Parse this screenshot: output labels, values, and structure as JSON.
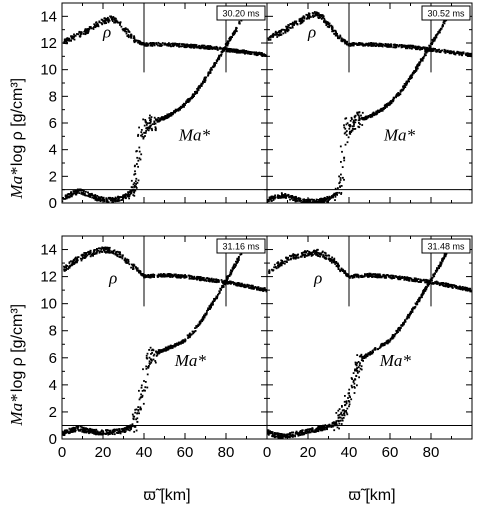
{
  "figure": {
    "ylabel_left": "log ρ [g/cm³]",
    "ylabel_mach": "Ma*",
    "xlabel": "ϖ̃ [km]"
  },
  "chart_data": [
    {
      "type": "scatter",
      "panel": "top-left",
      "time_label": "30.20 ms",
      "xlim": [
        0,
        100
      ],
      "ylim": [
        0,
        15
      ],
      "xticks": [],
      "yticks": [
        0,
        2,
        4,
        6,
        8,
        10,
        12,
        14
      ],
      "annotations": [
        "ρ",
        "Ma*"
      ],
      "reference_lines": {
        "vertical_x": [
          40,
          80
        ],
        "horizontal_y": [
          1
        ]
      },
      "series": [
        {
          "name": "ρ",
          "points": [
            [
              1,
              12.1
            ],
            [
              4,
              12.3
            ],
            [
              8,
              12.6
            ],
            [
              12,
              12.9
            ],
            [
              16,
              13.3
            ],
            [
              20,
              13.6
            ],
            [
              24,
              13.8
            ],
            [
              27,
              13.6
            ],
            [
              30,
              13.1
            ],
            [
              33,
              12.6
            ],
            [
              36,
              12.2
            ],
            [
              40,
              11.9
            ],
            [
              50,
              11.9
            ],
            [
              60,
              11.8
            ],
            [
              70,
              11.7
            ],
            [
              80,
              11.5
            ],
            [
              90,
              11.3
            ],
            [
              100,
              11.1
            ]
          ]
        },
        {
          "name": "Ma*",
          "points": [
            [
              0,
              0.3
            ],
            [
              4,
              0.6
            ],
            [
              8,
              0.9
            ],
            [
              12,
              0.7
            ],
            [
              18,
              0.3
            ],
            [
              24,
              0.2
            ],
            [
              30,
              0.4
            ],
            [
              34,
              0.8
            ],
            [
              36,
              1.5
            ],
            [
              37,
              3
            ],
            [
              38,
              4.5
            ],
            [
              39,
              5.6
            ],
            [
              41,
              5.8
            ],
            [
              45,
              6.1
            ],
            [
              50,
              6.4
            ],
            [
              55,
              6.8
            ],
            [
              60,
              7.4
            ],
            [
              65,
              8.2
            ],
            [
              70,
              9.3
            ],
            [
              75,
              10.5
            ],
            [
              80,
              11.8
            ],
            [
              85,
              13
            ],
            [
              90,
              14.6
            ]
          ]
        }
      ]
    },
    {
      "type": "scatter",
      "panel": "top-right",
      "time_label": "30.52 ms",
      "xlim": [
        0,
        100
      ],
      "ylim": [
        0,
        15
      ],
      "xticks": [],
      "yticks": [],
      "annotations": [
        "ρ",
        "Ma*"
      ],
      "reference_lines": {
        "vertical_x": [
          40,
          80
        ],
        "horizontal_y": [
          1
        ]
      },
      "series": [
        {
          "name": "ρ",
          "points": [
            [
              1,
              12.4
            ],
            [
              4,
              12.6
            ],
            [
              8,
              12.9
            ],
            [
              12,
              13.3
            ],
            [
              16,
              13.6
            ],
            [
              20,
              14
            ],
            [
              24,
              14.2
            ],
            [
              27,
              13.9
            ],
            [
              30,
              13.4
            ],
            [
              33,
              12.8
            ],
            [
              36,
              12.3
            ],
            [
              40,
              11.9
            ],
            [
              50,
              11.9
            ],
            [
              60,
              11.8
            ],
            [
              70,
              11.7
            ],
            [
              80,
              11.5
            ],
            [
              90,
              11.3
            ],
            [
              100,
              11.1
            ]
          ]
        },
        {
          "name": "Ma*",
          "points": [
            [
              0,
              0.2
            ],
            [
              4,
              0.4
            ],
            [
              8,
              0.6
            ],
            [
              12,
              0.4
            ],
            [
              18,
              0.1
            ],
            [
              24,
              0.1
            ],
            [
              30,
              0.3
            ],
            [
              34,
              0.7
            ],
            [
              36,
              1.4
            ],
            [
              37,
              3
            ],
            [
              38,
              4.6
            ],
            [
              39,
              5.7
            ],
            [
              41,
              5.9
            ],
            [
              45,
              6.2
            ],
            [
              50,
              6.5
            ],
            [
              55,
              6.9
            ],
            [
              60,
              7.5
            ],
            [
              65,
              8.3
            ],
            [
              70,
              9.4
            ],
            [
              75,
              10.6
            ],
            [
              80,
              11.9
            ],
            [
              85,
              13.1
            ],
            [
              90,
              14.6
            ]
          ]
        }
      ]
    },
    {
      "type": "scatter",
      "panel": "bottom-left",
      "time_label": "31.16 ms",
      "xlim": [
        0,
        100
      ],
      "ylim": [
        0,
        15
      ],
      "xticks": [
        0,
        20,
        40,
        60,
        80
      ],
      "yticks": [
        0,
        2,
        4,
        6,
        8,
        10,
        12,
        14
      ],
      "annotations": [
        "ρ",
        "Ma*"
      ],
      "reference_lines": {
        "vertical_x": [
          40,
          80
        ],
        "horizontal_y": [
          1
        ]
      },
      "series": [
        {
          "name": "ρ",
          "points": [
            [
              1,
              12.5
            ],
            [
              4,
              12.9
            ],
            [
              8,
              13.3
            ],
            [
              12,
              13.6
            ],
            [
              16,
              13.8
            ],
            [
              20,
              14
            ],
            [
              24,
              13.9
            ],
            [
              28,
              13.6
            ],
            [
              32,
              13.1
            ],
            [
              36,
              12.6
            ],
            [
              40,
              12
            ],
            [
              50,
              12.1
            ],
            [
              60,
              12
            ],
            [
              70,
              11.8
            ],
            [
              80,
              11.6
            ],
            [
              90,
              11.3
            ],
            [
              100,
              11
            ]
          ]
        },
        {
          "name": "Ma*",
          "points": [
            [
              0,
              0.4
            ],
            [
              4,
              0.6
            ],
            [
              8,
              0.8
            ],
            [
              12,
              0.6
            ],
            [
              18,
              0.5
            ],
            [
              24,
              0.5
            ],
            [
              30,
              0.6
            ],
            [
              34,
              0.9
            ],
            [
              36,
              1.5
            ],
            [
              38,
              2.5
            ],
            [
              40,
              4
            ],
            [
              42,
              5.8
            ],
            [
              45,
              6.3
            ],
            [
              50,
              6.6
            ],
            [
              55,
              6.9
            ],
            [
              60,
              7.3
            ],
            [
              65,
              8.1
            ],
            [
              70,
              9.2
            ],
            [
              75,
              10.4
            ],
            [
              80,
              11.7
            ],
            [
              85,
              13
            ],
            [
              90,
              14.5
            ]
          ]
        }
      ]
    },
    {
      "type": "scatter",
      "panel": "bottom-right",
      "time_label": "31.48 ms",
      "xlim": [
        0,
        100
      ],
      "ylim": [
        0,
        15
      ],
      "xticks": [
        0,
        20,
        40,
        60,
        80
      ],
      "yticks": [],
      "annotations": [
        "ρ",
        "Ma*"
      ],
      "reference_lines": {
        "vertical_x": [
          40,
          80
        ],
        "horizontal_y": [
          1
        ]
      },
      "series": [
        {
          "name": "ρ",
          "points": [
            [
              1,
              12.3
            ],
            [
              4,
              12.7
            ],
            [
              8,
              13.1
            ],
            [
              12,
              13.4
            ],
            [
              16,
              13.6
            ],
            [
              20,
              13.7
            ],
            [
              24,
              13.8
            ],
            [
              28,
              13.6
            ],
            [
              32,
              13.2
            ],
            [
              36,
              12.6
            ],
            [
              40,
              12
            ],
            [
              50,
              12.1
            ],
            [
              60,
              12
            ],
            [
              70,
              11.8
            ],
            [
              80,
              11.6
            ],
            [
              90,
              11.3
            ],
            [
              100,
              11
            ]
          ]
        },
        {
          "name": "Ma*",
          "points": [
            [
              0,
              0.5
            ],
            [
              4,
              0.3
            ],
            [
              8,
              0.2
            ],
            [
              12,
              0.3
            ],
            [
              18,
              0.5
            ],
            [
              24,
              0.7
            ],
            [
              30,
              0.9
            ],
            [
              34,
              1.2
            ],
            [
              38,
              2
            ],
            [
              41,
              3.5
            ],
            [
              44,
              5
            ],
            [
              46,
              5.9
            ],
            [
              50,
              6.3
            ],
            [
              55,
              6.8
            ],
            [
              60,
              7.3
            ],
            [
              65,
              8.2
            ],
            [
              70,
              9.3
            ],
            [
              75,
              10.5
            ],
            [
              80,
              11.8
            ],
            [
              85,
              13
            ],
            [
              90,
              14.5
            ]
          ]
        }
      ]
    }
  ]
}
